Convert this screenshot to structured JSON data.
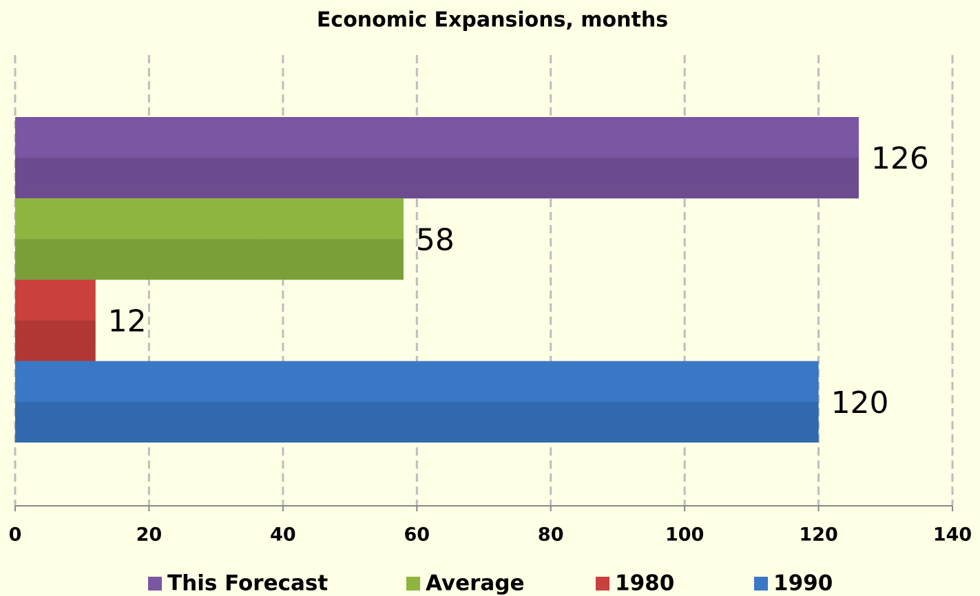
{
  "chart_data": {
    "type": "bar",
    "orientation": "horizontal",
    "title": "Economic Expansions, months",
    "categories": [
      null
    ],
    "series": [
      {
        "name": "This Forecast",
        "color": "#7b56a3",
        "values": [
          126
        ]
      },
      {
        "name": "Average",
        "color": "#8db540",
        "values": [
          58
        ]
      },
      {
        "name": "1980",
        "color": "#c9403c",
        "values": [
          12
        ]
      },
      {
        "name": "1990",
        "color": "#3a78c6",
        "values": [
          120
        ]
      }
    ],
    "xlim": [
      0,
      140
    ],
    "xticks": [
      0,
      20,
      40,
      60,
      80,
      100,
      120,
      140
    ],
    "grid": true,
    "legend": "bottom"
  }
}
